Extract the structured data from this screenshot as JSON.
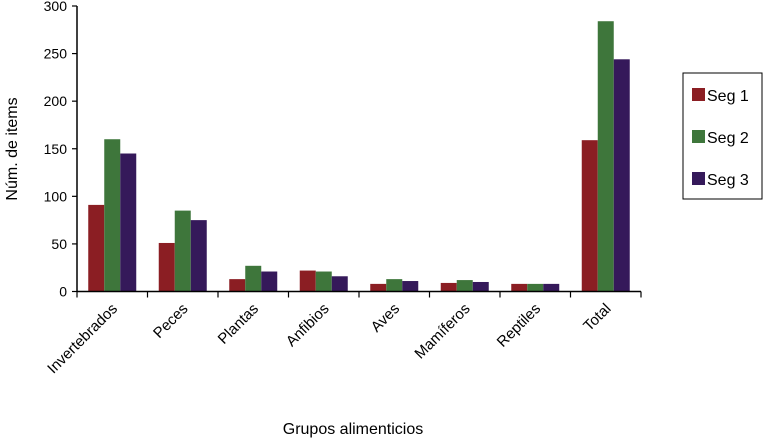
{
  "chart_data": {
    "type": "bar",
    "title": "",
    "xlabel": "Grupos alimenticios",
    "ylabel": "Núm. de items",
    "ylim": [
      0,
      300
    ],
    "yticks": [
      0,
      50,
      100,
      150,
      200,
      250,
      300
    ],
    "grid": false,
    "legend_position": "right",
    "categories": [
      "Invertebrados",
      "Peces",
      "Plantas",
      "Anfibios",
      "Aves",
      "Mamíferos",
      "Reptiles",
      "Total"
    ],
    "series": [
      {
        "name": "Seg 1",
        "color": "#8b1e23",
        "values": [
          91,
          51,
          13,
          22,
          8,
          9,
          8,
          159
        ]
      },
      {
        "name": "Seg 2",
        "color": "#3e763b",
        "values": [
          160,
          85,
          27,
          21,
          13,
          12,
          8,
          284
        ]
      },
      {
        "name": "Seg 3",
        "color": "#35195a",
        "values": [
          145,
          75,
          21,
          16,
          11,
          10,
          8,
          244
        ]
      }
    ]
  }
}
